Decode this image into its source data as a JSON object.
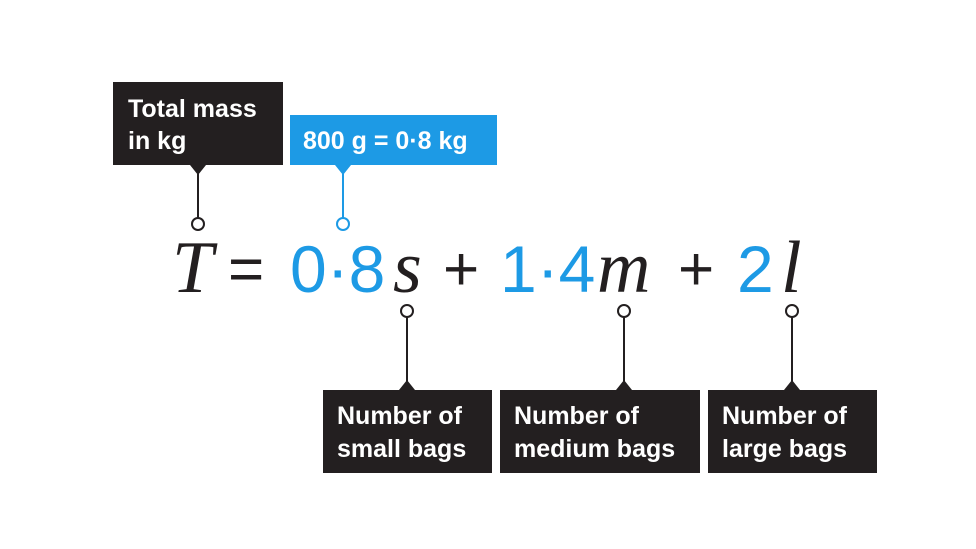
{
  "callouts": {
    "total": {
      "lines": [
        "Total mass",
        "in kg"
      ]
    },
    "conversion": {
      "text": "800 g = 0·8 kg"
    }
  },
  "equation": {
    "terms": [
      "T",
      "=",
      "0·8",
      "s",
      "+",
      "1·4",
      "m",
      "+",
      "2",
      "l"
    ]
  },
  "labels": [
    {
      "lines": [
        "Number of",
        "small bags"
      ]
    },
    {
      "lines": [
        "Number of",
        "medium bags"
      ]
    },
    {
      "lines": [
        "Number of",
        "large bags"
      ]
    }
  ]
}
